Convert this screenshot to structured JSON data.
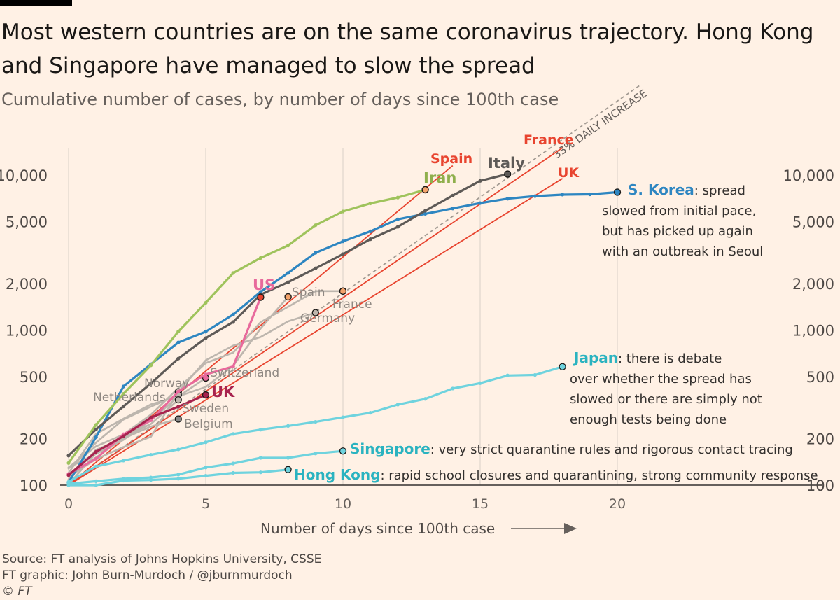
{
  "header": {
    "title": "Most western countries are on the same coronavirus trajectory. Hong Kong and Singapore have managed to slow the spread",
    "subtitle": "Cumulative number of cases, by number of days since 100th case"
  },
  "footer": {
    "source": "Source: FT analysis of Johns Hopkins University, CSSE",
    "credit": "FT graphic: John Burn-Murdoch / @jburnmurdoch",
    "copyright": "© FT"
  },
  "chart_data": {
    "type": "line",
    "title": "Most western countries are on the same coronavirus trajectory. Hong Kong and Singapore have managed to slow the spread",
    "subtitle": "Cumulative number of cases, by number of days since 100th case",
    "xlabel": "Number of days since 100th case",
    "ylabel": "",
    "y_scale": "log",
    "xlim": [
      0,
      21
    ],
    "ylim": [
      100,
      15000
    ],
    "x_ticks": [
      0,
      5,
      10,
      15,
      20
    ],
    "y_ticks": [
      100,
      200,
      500,
      1000,
      2000,
      5000,
      10000
    ],
    "y_tick_labels": [
      "100",
      "200",
      "500",
      "1,000",
      "2,000",
      "5,000",
      "10,000"
    ],
    "grid": "vertical",
    "reference_line": {
      "label": "33% DAILY INCREASE",
      "start": 100,
      "daily_growth": 0.33
    },
    "colors": {
      "background": "#FFF1E5",
      "korea": "#2E86C1",
      "italy": "#5E5A57",
      "iran": "#9FC35C",
      "us": "#E86A9C",
      "uk": "#A8234E",
      "red": "#E8442F",
      "japan": "#6FD3DE",
      "other": "#BDB6AE"
    },
    "series": [
      {
        "name": "S. Korea",
        "label": "S. Korea",
        "note": ": spread slowed from initial pace, but has picked up again with an outbreak in Seoul",
        "color": "#2E86C1",
        "style": "main",
        "x": [
          0,
          1,
          2,
          3,
          4,
          5,
          6,
          7,
          8,
          9,
          10,
          11,
          12,
          13,
          14,
          15,
          16,
          17,
          18,
          19,
          20
        ],
        "y": [
          104,
          204,
          433,
          602,
          833,
          977,
          1261,
          1766,
          2337,
          3150,
          3736,
          4335,
          5186,
          5621,
          6088,
          6593,
          7041,
          7314,
          7478,
          7513,
          7755
        ]
      },
      {
        "name": "Italy",
        "label": "Italy",
        "color": "#5E5A57",
        "style": "main",
        "x": [
          0,
          1,
          2,
          3,
          4,
          5,
          6,
          7,
          8,
          9,
          10,
          11,
          12,
          13,
          14,
          15,
          16
        ],
        "y": [
          155,
          229,
          322,
          453,
          655,
          888,
          1128,
          1694,
          2036,
          2502,
          3089,
          3858,
          4636,
          5883,
          7375,
          9172,
          10149
        ]
      },
      {
        "name": "Iran",
        "label": "Iran",
        "color": "#9FC35C",
        "style": "main",
        "x": [
          0,
          1,
          2,
          3,
          4,
          5,
          6,
          7,
          8,
          9,
          10,
          11,
          12,
          13
        ],
        "y": [
          139,
          245,
          388,
          593,
          978,
          1501,
          2336,
          2922,
          3513,
          4747,
          5823,
          6566,
          7161,
          8042
        ]
      },
      {
        "name": "US",
        "label": "US",
        "color": "#E86A9C",
        "style": "main",
        "x": [
          0,
          1,
          2,
          3,
          4,
          5,
          6,
          7
        ],
        "y": [
          118,
          148,
          213,
          262,
          402,
          518,
          583,
          1629
        ]
      },
      {
        "name": "UK",
        "label": "UK",
        "color": "#A8234E",
        "style": "main",
        "x": [
          0,
          1,
          2,
          3,
          4,
          5
        ],
        "y": [
          116,
          164,
          207,
          273,
          321,
          382
        ]
      },
      {
        "name": "Spain",
        "label": "Spain",
        "color": "#BDB6AE",
        "style": "other",
        "x": [
          0,
          1,
          2,
          3,
          4,
          5,
          6,
          7,
          8
        ],
        "y": [
          114,
          151,
          200,
          261,
          374,
          430,
          589,
          1024,
          1639
        ]
      },
      {
        "name": "France",
        "label": "France",
        "color": "#BDB6AE",
        "style": "other",
        "x": [
          0,
          1,
          2,
          3,
          4,
          5,
          6,
          7,
          8,
          9,
          10
        ],
        "y": [
          130,
          178,
          212,
          285,
          423,
          613,
          716,
          1126,
          1412,
          1784,
          1784
        ]
      },
      {
        "name": "Germany",
        "label": "Germany",
        "color": "#BDB6AE",
        "style": "other",
        "x": [
          0,
          1,
          2,
          3,
          4,
          5,
          6,
          7,
          8,
          9
        ],
        "y": [
          130,
          159,
          196,
          262,
          400,
          639,
          795,
          902,
          1139,
          1296
        ]
      },
      {
        "name": "Switzerland",
        "label": "Switzerland",
        "color": "#BDB6AE",
        "style": "other",
        "x": [
          0,
          1,
          2,
          3,
          4,
          5
        ],
        "y": [
          120,
          214,
          268,
          332,
          373,
          491
        ]
      },
      {
        "name": "Norway",
        "label": "Norway",
        "color": "#BDB6AE",
        "style": "other",
        "x": [
          0,
          1,
          2,
          3,
          4
        ],
        "y": [
          113,
          147,
          176,
          205,
          400
        ]
      },
      {
        "name": "Netherlands",
        "label": "Netherlands",
        "color": "#BDB6AE",
        "style": "other",
        "x": [
          0,
          1,
          2,
          3,
          4
        ],
        "y": [
          128,
          188,
          265,
          321,
          382
        ]
      },
      {
        "name": "Sweden",
        "label": "Sweden",
        "color": "#BDB6AE",
        "style": "other",
        "x": [
          0,
          1,
          2,
          3,
          4
        ],
        "y": [
          101,
          161,
          203,
          248,
          355
        ]
      },
      {
        "name": "Belgium",
        "label": "Belgium",
        "color": "#BDB6AE",
        "style": "other",
        "x": [
          0,
          1,
          2,
          3,
          4
        ],
        "y": [
          109,
          169,
          200,
          239,
          267
        ]
      },
      {
        "name": "Japan",
        "label": "Japan",
        "note": ": there is debate over whether the spread has slowed or there are simply not enough tests being done",
        "color": "#6FD3DE",
        "style": "main",
        "x": [
          0,
          1,
          2,
          3,
          4,
          5,
          6,
          7,
          8,
          9,
          10,
          11,
          12,
          13,
          14,
          15,
          16,
          17,
          18
        ],
        "y": [
          105,
          132,
          144,
          157,
          170,
          189,
          214,
          228,
          241,
          256,
          274,
          293,
          331,
          360,
          420,
          455,
          510,
          514,
          581
        ]
      },
      {
        "name": "Singapore",
        "label": "Singapore",
        "note": ": very strict quarantine rules and rigorous contact tracing",
        "color": "#6FD3DE",
        "style": "main",
        "x": [
          0,
          1,
          2,
          3,
          4,
          5,
          6,
          7,
          8,
          9,
          10
        ],
        "y": [
          102,
          106,
          110,
          112,
          117,
          130,
          138,
          150,
          150,
          160,
          166
        ]
      },
      {
        "name": "Hong Kong",
        "label": "Hong Kong",
        "note": ": rapid school closures and quarantining, strong community response",
        "color": "#6FD3DE",
        "style": "main",
        "x": [
          0,
          1,
          2,
          3,
          4,
          5,
          6,
          7,
          8
        ],
        "y": [
          100,
          100,
          107,
          108,
          110,
          115,
          120,
          121,
          126
        ]
      }
    ],
    "red_trend_lines": [
      {
        "name": "Spain",
        "x": [
          0,
          14
        ],
        "y": [
          100,
          11500
        ]
      },
      {
        "name": "France",
        "x": [
          0,
          18
        ],
        "y": [
          100,
          15000
        ]
      },
      {
        "name": "UK",
        "x": [
          0,
          18
        ],
        "y": [
          100,
          9500
        ]
      }
    ]
  }
}
